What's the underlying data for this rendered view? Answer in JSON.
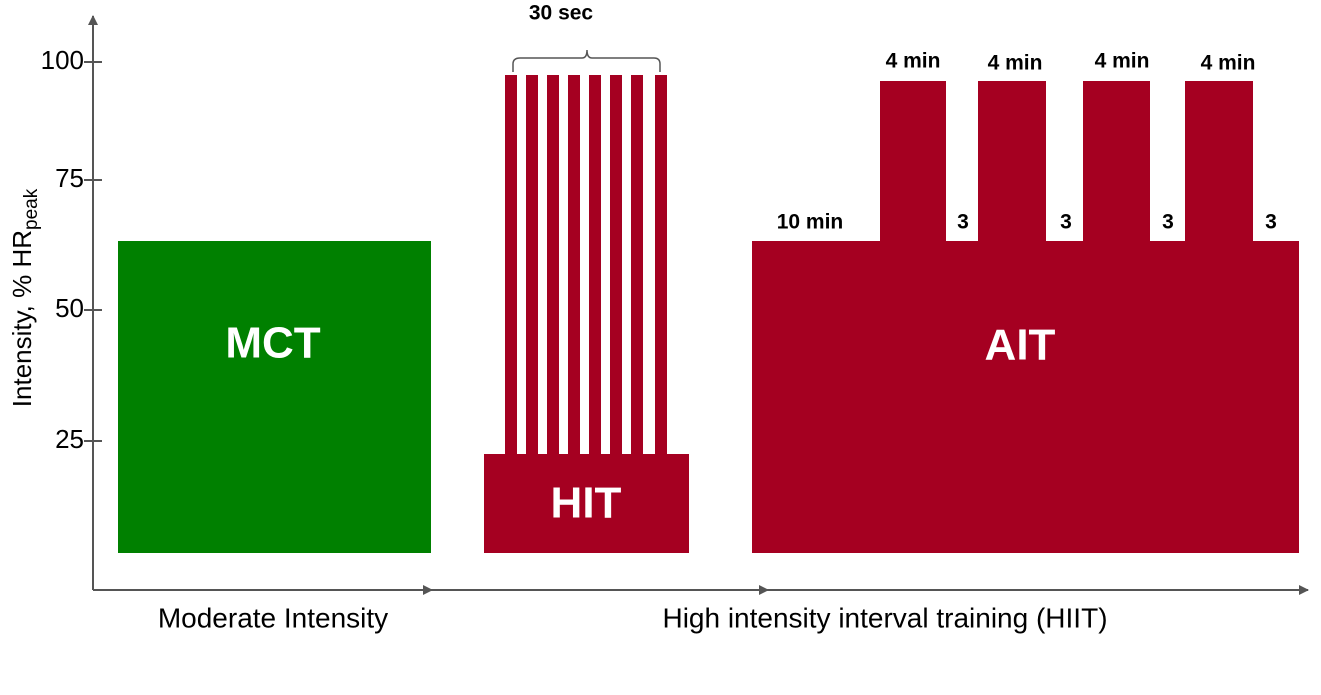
{
  "y_axis": {
    "label": "Intensity, % HR",
    "label_subscript": "peak",
    "ticks": [
      "100",
      "75",
      "50",
      "25"
    ]
  },
  "blocks": {
    "mct": "MCT",
    "hit": "HIT",
    "ait": "AIT"
  },
  "hit_annotation": "30 sec",
  "ait_annotations": {
    "warmup": "10 min",
    "intervals": [
      "4 min",
      "4 min",
      "4 min",
      "4 min"
    ],
    "recoveries": [
      "3",
      "3",
      "3",
      "3"
    ]
  },
  "x_axis": {
    "moderate": "Moderate Intensity",
    "hiit": "High intensity interval training (HIIT)"
  }
}
